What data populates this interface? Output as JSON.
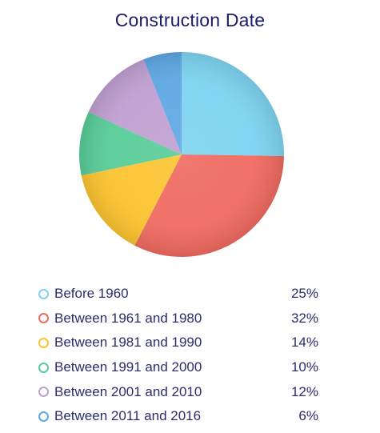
{
  "chart_data": {
    "type": "pie",
    "title": "Construction Date",
    "slices": [
      {
        "label": "Before 1960",
        "value": 25,
        "value_label": "25%",
        "color": "#7dd3f0"
      },
      {
        "label": "Between 1961 and 1980",
        "value": 32,
        "value_label": "32%",
        "color": "#ef6a60"
      },
      {
        "label": "Between 1981 and 1990",
        "value": 14,
        "value_label": "14%",
        "color": "#fbc42f"
      },
      {
        "label": "Between 1991 and 2000",
        "value": 10,
        "value_label": "10%",
        "color": "#58cc98"
      },
      {
        "label": "Between 2001 and 2010",
        "value": 12,
        "value_label": "12%",
        "color": "#c09fd2"
      },
      {
        "label": "Between 2011 and 2016",
        "value": 6,
        "value_label": "6%",
        "color": "#5ea7e3"
      }
    ],
    "legend_position": "bottom"
  }
}
